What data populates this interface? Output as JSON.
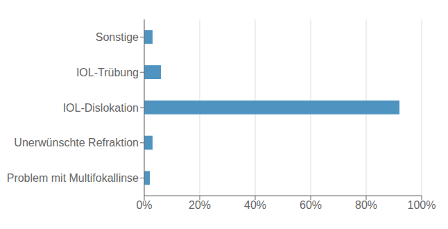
{
  "chart_data": {
    "type": "bar",
    "orientation": "horizontal",
    "categories": [
      "Problem mit Multifokallinse",
      "Unerwünschte Refraktion",
      "IOL-Dislokation",
      "IOL-Trübung",
      "Sonstige"
    ],
    "values": [
      2,
      3,
      92,
      6,
      3
    ],
    "color": "#4f93c0",
    "xlim": [
      0,
      100
    ],
    "xticks": [
      {
        "value": 0,
        "label": "0%"
      },
      {
        "value": 20,
        "label": "20%"
      },
      {
        "value": 40,
        "label": "40%"
      },
      {
        "value": 60,
        "label": "60%"
      },
      {
        "value": 80,
        "label": "80%"
      },
      {
        "value": 100,
        "label": "100%"
      }
    ],
    "grid": true
  }
}
